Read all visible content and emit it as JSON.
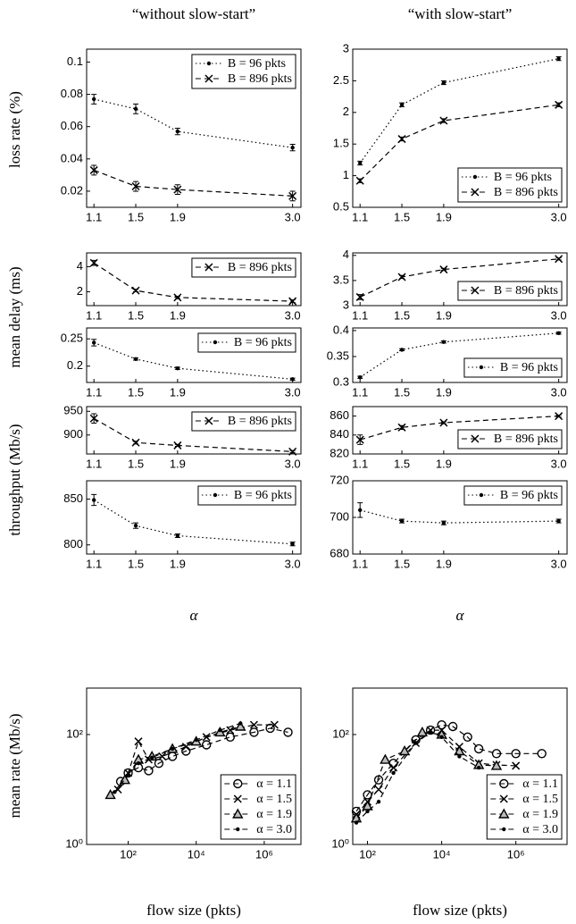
{
  "column_titles": [
    "“without slow-start”",
    "“with slow-start”"
  ],
  "row_labels": [
    "loss rate (%)",
    "mean delay (ms)",
    "throughput (Mb/s)",
    "mean rate (Mb/s)"
  ],
  "x_labels": [
    "α",
    "α",
    "flow size (pkts)",
    "flow size (pkts)"
  ],
  "chart_data": [
    {
      "type": "line",
      "x": [
        1.1,
        1.5,
        1.9,
        3
      ],
      "xlim": [
        1.03,
        3.08
      ],
      "xticks": [
        1.1,
        1.5,
        1.9,
        {
          "value": 3,
          "label": "3.0"
        }
      ],
      "ylim": [
        0.01,
        0.108
      ],
      "yticks": [
        0.02,
        0.04,
        0.06,
        0.08,
        0.1
      ],
      "legend": "upper right",
      "series": [
        {
          "name": "B = 96 pkts",
          "color": "#000000",
          "marker": "dot",
          "dash": "dotted",
          "values": [
            0.077,
            0.071,
            0.057,
            0.047
          ],
          "errors": [
            0.003,
            0.003,
            0.002,
            0.002
          ]
        },
        {
          "name": "B = 896 pkts",
          "color": "#000000",
          "marker": "x",
          "dash": "dashed",
          "values": [
            0.033,
            0.023,
            0.021,
            0.017
          ],
          "errors": [
            0.003,
            0.003,
            0.003,
            0.003
          ]
        }
      ]
    },
    {
      "type": "line",
      "x": [
        1.1,
        1.5,
        1.9,
        3
      ],
      "xlim": [
        1.03,
        3.08
      ],
      "xticks": [
        1.1,
        1.5,
        1.9,
        {
          "value": 3,
          "label": "3.0"
        }
      ],
      "ylim": [
        0.5,
        3
      ],
      "yticks": [
        0.5,
        1,
        1.5,
        2,
        2.5,
        3
      ],
      "legend": "lower right",
      "series": [
        {
          "name": "B = 96 pkts",
          "color": "#000000",
          "marker": "dot",
          "dash": "dotted",
          "values": [
            1.2,
            2.12,
            2.47,
            2.85
          ],
          "errors": [
            0.03,
            0.03,
            0.03,
            0.03
          ]
        },
        {
          "name": "B = 896 pkts",
          "color": "#000000",
          "marker": "x",
          "dash": "dashed",
          "values": [
            0.92,
            1.58,
            1.87,
            2.12
          ],
          "errors": [
            0.03,
            0.03,
            0.03,
            0.03
          ]
        }
      ]
    },
    {
      "type": "line",
      "x": [
        1.1,
        1.5,
        1.9,
        3
      ],
      "xlim": [
        1.03,
        3.08
      ],
      "xticks": [
        1.1,
        1.5,
        1.9,
        {
          "value": 3,
          "label": "3.0"
        }
      ],
      "ylim": [
        0.9,
        5.1
      ],
      "yticks": [
        2,
        4
      ],
      "legend": "upper right",
      "series": [
        {
          "name": "B = 896 pkts",
          "color": "#000000",
          "marker": "x",
          "dash": "dashed",
          "values": [
            4.3,
            2.1,
            1.55,
            1.25
          ],
          "errors": [
            0.2,
            0.1,
            0.1,
            0.1
          ]
        }
      ]
    },
    {
      "type": "line",
      "x": [
        1.1,
        1.5,
        1.9,
        3
      ],
      "xlim": [
        1.03,
        3.08
      ],
      "xticks": [
        1.1,
        1.5,
        1.9,
        {
          "value": 3,
          "label": "3.0"
        }
      ],
      "ylim": [
        3,
        4.05
      ],
      "yticks": [
        3,
        3.5,
        4
      ],
      "legend": "lower right",
      "series": [
        {
          "name": "B = 896 pkts",
          "color": "#000000",
          "marker": "x",
          "dash": "dashed",
          "values": [
            3.17,
            3.57,
            3.72,
            3.93
          ],
          "errors": [
            0.05,
            0.03,
            0.02,
            0.02
          ]
        }
      ]
    },
    {
      "type": "line",
      "x": [
        1.1,
        1.5,
        1.9,
        3
      ],
      "xlim": [
        1.03,
        3.08
      ],
      "xticks": [
        1.1,
        1.5,
        1.9,
        {
          "value": 3,
          "label": "3.0"
        }
      ],
      "ylim": [
        0.17,
        0.27
      ],
      "yticks": [
        0.2,
        0.25
      ],
      "legend": "upper right",
      "series": [
        {
          "name": "B = 96 pkts",
          "color": "#000000",
          "marker": "dot",
          "dash": "dotted",
          "values": [
            0.243,
            0.213,
            0.196,
            0.176
          ],
          "errors": [
            0.006,
            0.002,
            0.002,
            0.002
          ]
        }
      ]
    },
    {
      "type": "line",
      "x": [
        1.1,
        1.5,
        1.9,
        3
      ],
      "xlim": [
        1.03,
        3.08
      ],
      "xticks": [
        1.1,
        1.5,
        1.9,
        {
          "value": 3,
          "label": "3.0"
        }
      ],
      "ylim": [
        0.3,
        0.405
      ],
      "yticks": [
        0.3,
        0.35,
        0.4
      ],
      "legend": "lower right",
      "series": [
        {
          "name": "B = 96 pkts",
          "color": "#000000",
          "marker": "dot",
          "dash": "dotted",
          "values": [
            0.31,
            0.363,
            0.378,
            0.395
          ],
          "errors": [
            0.002,
            0.002,
            0.002,
            0.002
          ]
        }
      ]
    },
    {
      "type": "line",
      "x": [
        1.1,
        1.5,
        1.9,
        3
      ],
      "xlim": [
        1.03,
        3.08
      ],
      "xticks": [
        1.1,
        1.5,
        1.9,
        {
          "value": 3,
          "label": "3.0"
        }
      ],
      "ylim": [
        860,
        960
      ],
      "yticks": [
        900,
        950
      ],
      "legend": "upper right",
      "series": [
        {
          "name": "B = 896 pkts",
          "color": "#000000",
          "marker": "x",
          "dash": "dashed",
          "values": [
            935,
            884,
            878,
            865
          ],
          "errors": [
            10,
            3,
            2,
            2
          ]
        }
      ]
    },
    {
      "type": "line",
      "x": [
        1.1,
        1.5,
        1.9,
        3
      ],
      "xlim": [
        1.03,
        3.08
      ],
      "xticks": [
        1.1,
        1.5,
        1.9,
        {
          "value": 3,
          "label": "3.0"
        }
      ],
      "ylim": [
        820,
        870
      ],
      "yticks": [
        820,
        840,
        860
      ],
      "legend": "lower right",
      "series": [
        {
          "name": "B = 896 pkts",
          "color": "#000000",
          "marker": "x",
          "dash": "dashed",
          "values": [
            835,
            848,
            853,
            860
          ],
          "errors": [
            5,
            2,
            1,
            1
          ]
        }
      ]
    },
    {
      "type": "line",
      "x": [
        1.1,
        1.5,
        1.9,
        3
      ],
      "xlim": [
        1.03,
        3.08
      ],
      "xticks": [
        1.1,
        1.5,
        1.9,
        {
          "value": 3,
          "label": "3.0"
        }
      ],
      "ylim": [
        790,
        870
      ],
      "yticks": [
        800,
        850
      ],
      "legend": "upper right",
      "series": [
        {
          "name": "B = 96 pkts",
          "color": "#000000",
          "marker": "dot",
          "dash": "dotted",
          "values": [
            849,
            821,
            810,
            801
          ],
          "errors": [
            6,
            3,
            2,
            2
          ]
        }
      ]
    },
    {
      "type": "line",
      "x": [
        1.1,
        1.5,
        1.9,
        3
      ],
      "xlim": [
        1.03,
        3.08
      ],
      "xticks": [
        1.1,
        1.5,
        1.9,
        {
          "value": 3,
          "label": "3.0"
        }
      ],
      "ylim": [
        680,
        720
      ],
      "yticks": [
        680,
        700,
        720
      ],
      "legend": "upper right",
      "series": [
        {
          "name": "B = 96 pkts",
          "color": "#000000",
          "marker": "dot",
          "dash": "dotted",
          "values": [
            704,
            698,
            697,
            698
          ],
          "errors": [
            4,
            1,
            1,
            1
          ]
        }
      ]
    },
    {
      "type": "line",
      "log_x": true,
      "log_y": true,
      "xlim": [
        6,
        12000000
      ],
      "xticks": [
        {
          "value": 100,
          "label": "10²"
        },
        {
          "value": 10000,
          "label": "10⁴"
        },
        {
          "value": 1000000,
          "label": "10⁶"
        }
      ],
      "ylim": [
        1,
        700
      ],
      "yticks": [
        {
          "value": 1,
          "label": "10⁰"
        },
        {
          "value": 100,
          "label": "10²"
        }
      ],
      "legend": "lower right",
      "series": [
        {
          "name": "α = 1.1",
          "color": "#000000",
          "marker": "circle",
          "dash": "dashed",
          "x": [
            60,
            100,
            200,
            400,
            800,
            2000,
            5000,
            20000,
            100000,
            500000,
            1500000,
            5000000
          ],
          "values": [
            14,
            20,
            25,
            22,
            30,
            40,
            50,
            65,
            90,
            110,
            130,
            110
          ]
        },
        {
          "name": "α = 1.5",
          "color": "#000000",
          "marker": "x",
          "dash": "dashed",
          "x": [
            50,
            100,
            200,
            400,
            1000,
            5000,
            20000,
            100000,
            500000,
            2000000
          ],
          "values": [
            10,
            20,
            75,
            35,
            40,
            60,
            90,
            120,
            150,
            150
          ]
        },
        {
          "name": "α = 1.9",
          "color": "#000000",
          "marker": "triangle",
          "dash": "dashed",
          "x": [
            30,
            80,
            200,
            500,
            2000,
            10000,
            50000,
            200000
          ],
          "values": [
            8,
            15,
            35,
            40,
            55,
            75,
            110,
            140
          ]
        },
        {
          "name": "α = 3.0",
          "color": "#000000",
          "marker": "dot",
          "dash": "dashed",
          "x": [
            40,
            100,
            200,
            500,
            2000,
            10000,
            50000,
            200000
          ],
          "values": [
            9,
            18,
            30,
            38,
            55,
            80,
            120,
            160
          ]
        }
      ]
    },
    {
      "type": "line",
      "log_x": true,
      "log_y": true,
      "xlim": [
        40,
        24000000
      ],
      "xticks": [
        {
          "value": 100,
          "label": "10²"
        },
        {
          "value": 10000,
          "label": "10⁴"
        },
        {
          "value": 1000000,
          "label": "10⁶"
        }
      ],
      "ylim": [
        1,
        700
      ],
      "yticks": [
        {
          "value": 1,
          "label": "10⁰"
        },
        {
          "value": 100,
          "label": "10²"
        }
      ],
      "legend": "lower right",
      "series": [
        {
          "name": "α = 1.1",
          "color": "#000000",
          "marker": "circle",
          "dash": "dashed",
          "x": [
            50,
            100,
            200,
            500,
            2000,
            5000,
            10000,
            20000,
            50000,
            100000,
            300000,
            1000000,
            5000000
          ],
          "values": [
            4,
            8,
            15,
            30,
            80,
            120,
            150,
            140,
            90,
            55,
            45,
            45,
            45
          ]
        },
        {
          "name": "α = 1.5",
          "color": "#000000",
          "marker": "x",
          "dash": "dashed",
          "x": [
            50,
            100,
            200,
            500,
            2000,
            5000,
            10000,
            30000,
            100000,
            300000,
            1000000
          ],
          "values": [
            3.5,
            6,
            10,
            25,
            70,
            120,
            120,
            60,
            30,
            28,
            27
          ]
        },
        {
          "name": "α = 1.9",
          "color": "#000000",
          "marker": "triangle",
          "dash": "dashed",
          "x": [
            50,
            100,
            300,
            1000,
            3000,
            10000,
            30000,
            100000,
            300000
          ],
          "values": [
            3,
            5,
            35,
            50,
            110,
            100,
            50,
            28,
            27
          ]
        },
        {
          "name": "α = 3.0",
          "color": "#000000",
          "marker": "dot",
          "dash": "dashed",
          "x": [
            50,
            100,
            200,
            500,
            2000,
            5000,
            10000,
            30000,
            100000
          ],
          "values": [
            2.5,
            4,
            6,
            20,
            70,
            110,
            90,
            40,
            25
          ]
        }
      ]
    }
  ]
}
